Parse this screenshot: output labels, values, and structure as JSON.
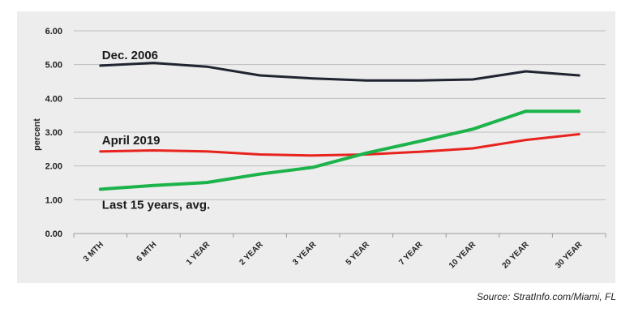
{
  "chart_data": {
    "type": "line",
    "ylabel": "percent",
    "ylim": [
      0,
      6
    ],
    "yticks": [
      "0.00",
      "1.00",
      "2.00",
      "3.00",
      "4.00",
      "5.00",
      "6.00"
    ],
    "categories": [
      "3 MTH",
      "6 MTH",
      "1 YEAR",
      "2 YEAR",
      "3 YEAR",
      "5 YEAR",
      "7 YEAR",
      "10 YEAR",
      "20 YEAR",
      "30 YEAR"
    ],
    "grid": "horizontal",
    "series": [
      {
        "name": "Dec. 2006",
        "color": "#1f2430",
        "values": [
          4.97,
          5.05,
          4.94,
          4.68,
          4.59,
          4.53,
          4.53,
          4.56,
          4.8,
          4.68
        ]
      },
      {
        "name": "April 2019",
        "color": "#e8231e",
        "values": [
          2.43,
          2.46,
          2.43,
          2.34,
          2.31,
          2.34,
          2.42,
          2.52,
          2.77,
          2.94
        ]
      },
      {
        "name": "Last 15 years, avg.",
        "color": "#1cb34a",
        "values": [
          1.31,
          1.42,
          1.51,
          1.76,
          1.96,
          2.38,
          2.73,
          3.09,
          3.62,
          3.62
        ]
      }
    ]
  },
  "source": "Source: StratInfo.com/Miami, FL"
}
